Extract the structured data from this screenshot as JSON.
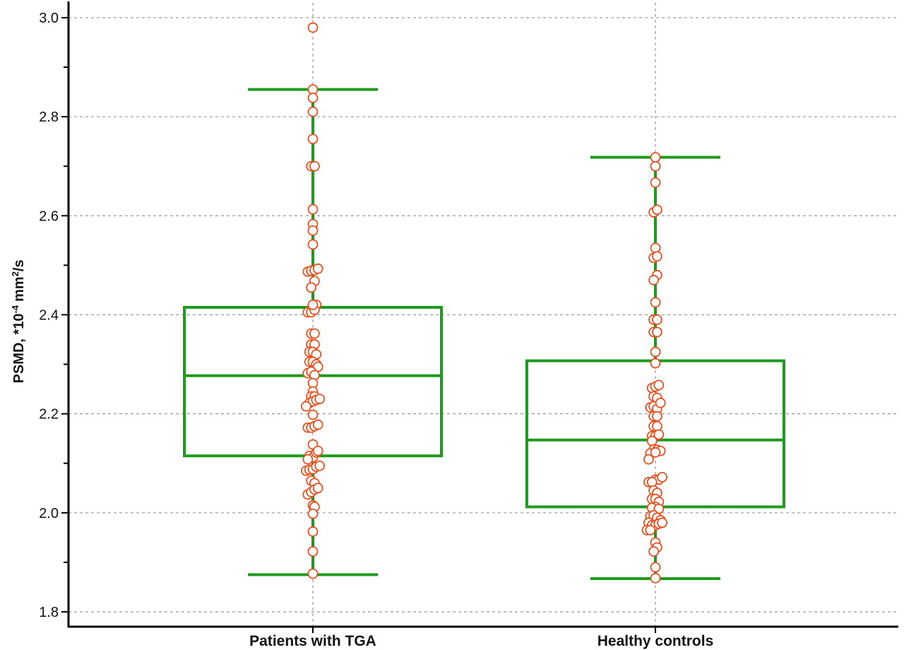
{
  "chart_data": {
    "type": "box",
    "ylabel": {
      "prefix": "PSMD, *10",
      "exp": "-4",
      "unit": "mm",
      "unit_exp": "2",
      "suffix": "/s"
    },
    "ylim": [
      1.77,
      3.03
    ],
    "yticks": [
      "1.8",
      "2.0",
      "2.2",
      "2.4",
      "2.6",
      "2.8",
      "3.0"
    ],
    "grid": true,
    "colors": {
      "box": "#1f9a1f",
      "points": "#e8501e",
      "grid": "#9a9a9a",
      "axis": "#000000"
    },
    "categories": [
      "Patients with TGA",
      "Healthy controls"
    ],
    "boxes": [
      {
        "name": "Patients with TGA",
        "whisker_low": 1.875,
        "q1": 2.115,
        "median": 2.277,
        "q3": 2.415,
        "whisker_high": 2.855,
        "points": [
          [
            0,
            2.98
          ],
          [
            0,
            2.855
          ],
          [
            0,
            2.838
          ],
          [
            0,
            2.81
          ],
          [
            0,
            2.755
          ],
          [
            -0.2,
            2.7
          ],
          [
            0.2,
            2.7
          ],
          [
            0,
            2.613
          ],
          [
            0,
            2.583
          ],
          [
            0,
            2.57
          ],
          [
            0,
            2.542
          ],
          [
            -0.6,
            2.487
          ],
          [
            -0.2,
            2.489
          ],
          [
            0.2,
            2.49
          ],
          [
            0.6,
            2.493
          ],
          [
            0.2,
            2.468
          ],
          [
            -0.2,
            2.455
          ],
          [
            0.4,
            2.42
          ],
          [
            -0.6,
            2.405
          ],
          [
            -0.2,
            2.405
          ],
          [
            0.2,
            2.41
          ],
          [
            0,
            2.42
          ],
          [
            -0.2,
            2.362
          ],
          [
            0.2,
            2.362
          ],
          [
            -0.2,
            2.34
          ],
          [
            0.2,
            2.34
          ],
          [
            -0.4,
            2.325
          ],
          [
            0,
            2.325
          ],
          [
            0.4,
            2.32
          ],
          [
            -0.4,
            2.305
          ],
          [
            0,
            2.305
          ],
          [
            0.4,
            2.3
          ],
          [
            0.6,
            2.295
          ],
          [
            -0.6,
            2.282
          ],
          [
            -0.2,
            2.285
          ],
          [
            0.2,
            2.278
          ],
          [
            0,
            2.262
          ],
          [
            0,
            2.245
          ],
          [
            -0.2,
            2.235
          ],
          [
            0.2,
            2.235
          ],
          [
            -0.4,
            2.222
          ],
          [
            0,
            2.225
          ],
          [
            0.4,
            2.228
          ],
          [
            0.8,
            2.23
          ],
          [
            -0.8,
            2.215
          ],
          [
            0,
            2.198
          ],
          [
            -0.6,
            2.172
          ],
          [
            -0.2,
            2.172
          ],
          [
            0.2,
            2.175
          ],
          [
            0.6,
            2.178
          ],
          [
            0,
            2.138
          ],
          [
            -0.4,
            2.115
          ],
          [
            0,
            2.112
          ],
          [
            0.4,
            2.122
          ],
          [
            -0.6,
            2.108
          ],
          [
            0.6,
            2.125
          ],
          [
            -0.8,
            2.085
          ],
          [
            -0.4,
            2.087
          ],
          [
            0,
            2.088
          ],
          [
            0.4,
            2.093
          ],
          [
            0.8,
            2.095
          ],
          [
            -0.2,
            2.065
          ],
          [
            0.2,
            2.06
          ],
          [
            -0.6,
            2.037
          ],
          [
            -0.2,
            2.042
          ],
          [
            0.2,
            2.047
          ],
          [
            0.6,
            2.05
          ],
          [
            0,
            2.015
          ],
          [
            0.2,
            2.012
          ],
          [
            0,
            1.998
          ],
          [
            0,
            1.962
          ],
          [
            0,
            1.922
          ],
          [
            0,
            1.877
          ]
        ]
      },
      {
        "name": "Healthy controls",
        "whisker_low": 1.867,
        "q1": 2.012,
        "median": 2.147,
        "q3": 2.307,
        "whisker_high": 2.718,
        "points": [
          [
            0,
            2.718
          ],
          [
            0,
            2.7
          ],
          [
            0,
            2.667
          ],
          [
            -0.2,
            2.607
          ],
          [
            0.2,
            2.612
          ],
          [
            0,
            2.535
          ],
          [
            -0.2,
            2.515
          ],
          [
            0.2,
            2.518
          ],
          [
            0.2,
            2.48
          ],
          [
            -0.2,
            2.47
          ],
          [
            0,
            2.425
          ],
          [
            -0.2,
            2.39
          ],
          [
            0.2,
            2.39
          ],
          [
            -0.2,
            2.365
          ],
          [
            0.2,
            2.365
          ],
          [
            0,
            2.325
          ],
          [
            0,
            2.302
          ],
          [
            -0.4,
            2.252
          ],
          [
            0,
            2.255
          ],
          [
            0.4,
            2.258
          ],
          [
            -0.2,
            2.235
          ],
          [
            0.2,
            2.232
          ],
          [
            -0.6,
            2.213
          ],
          [
            -0.2,
            2.215
          ],
          [
            0.2,
            2.21
          ],
          [
            0.6,
            2.222
          ],
          [
            -0.2,
            2.195
          ],
          [
            0.2,
            2.195
          ],
          [
            -0.2,
            2.175
          ],
          [
            0.2,
            2.175
          ],
          [
            -0.4,
            2.155
          ],
          [
            0,
            2.155
          ],
          [
            0.4,
            2.158
          ],
          [
            -0.4,
            2.145
          ],
          [
            -0.2,
            2.128
          ],
          [
            0.2,
            2.127
          ],
          [
            0.6,
            2.125
          ],
          [
            -0.6,
            2.12
          ],
          [
            0,
            2.122
          ],
          [
            -0.8,
            2.108
          ],
          [
            0,
            2.067
          ],
          [
            0.4,
            2.067
          ],
          [
            0.8,
            2.072
          ],
          [
            -0.8,
            2.062
          ],
          [
            -0.4,
            2.062
          ],
          [
            -0.2,
            2.045
          ],
          [
            0.2,
            2.04
          ],
          [
            -0.4,
            2.028
          ],
          [
            0,
            2.028
          ],
          [
            0.4,
            2.022
          ],
          [
            0,
            2.012
          ],
          [
            -0.4,
            2.01
          ],
          [
            0.4,
            2.008
          ],
          [
            -0.6,
            1.993
          ],
          [
            -0.2,
            1.995
          ],
          [
            0.2,
            1.99
          ],
          [
            0.6,
            1.985
          ],
          [
            -0.8,
            1.98
          ],
          [
            -0.4,
            1.975
          ],
          [
            0,
            1.975
          ],
          [
            0.4,
            1.978
          ],
          [
            0.8,
            1.98
          ],
          [
            -1.0,
            1.965
          ],
          [
            -0.6,
            1.965
          ],
          [
            0,
            1.94
          ],
          [
            0.2,
            1.93
          ],
          [
            -0.2,
            1.922
          ],
          [
            0,
            1.89
          ],
          [
            0,
            1.868
          ]
        ]
      }
    ]
  }
}
